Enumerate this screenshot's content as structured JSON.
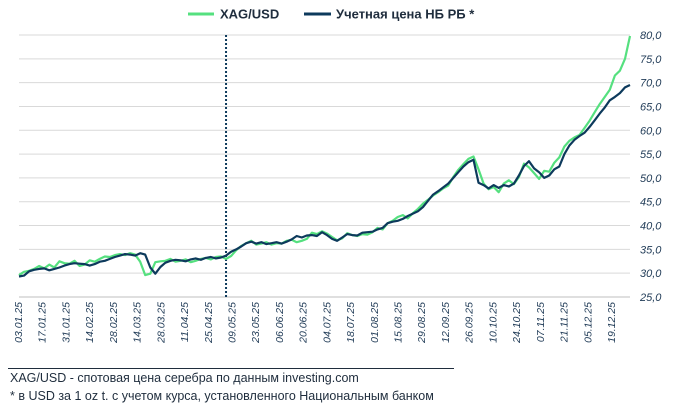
{
  "chart_data": {
    "type": "line",
    "title": "",
    "xlabel": "",
    "ylabel": "",
    "ylim": [
      25,
      80
    ],
    "yticks": [
      "25,0",
      "30,0",
      "35,0",
      "40,0",
      "45,0",
      "50,0",
      "55,0",
      "60,0",
      "65,0",
      "70,0",
      "75,0",
      "80,0"
    ],
    "grid": true,
    "legend_position": "top-center",
    "colors": {
      "xag": "#55e07f",
      "nb": "#0d3a5c",
      "grid": "#d9d9d9",
      "marker": "#0d3a5c"
    },
    "vline": {
      "x": 41,
      "style": "dotted",
      "label": ""
    },
    "x_tick_labels": [
      "03.01.25",
      "17.01.25",
      "31.01.25",
      "14.02.25",
      "28.02.25",
      "14.03.25",
      "28.03.25",
      "11.04.25",
      "25.04.25",
      "09.05.25",
      "23.05.25",
      "06.06.25",
      "20.06.25",
      "04.07.25",
      "18.07.25",
      "01.08.25",
      "15.08.25",
      "29.08.25",
      "12.09.25",
      "26.09.25",
      "10.10.25",
      "24.10.25",
      "07.11.25",
      "21.11.25",
      "05.12.25",
      "19.12.25"
    ],
    "series": [
      {
        "name": "XAG/USD",
        "values": [
          29.6,
          30.3,
          30.5,
          30.9,
          31.5,
          31.0,
          31.8,
          31.2,
          32.5,
          32.1,
          32.0,
          32.6,
          31.5,
          31.8,
          32.7,
          32.4,
          33.0,
          33.5,
          33.4,
          33.8,
          34.0,
          33.8,
          34.2,
          33.9,
          32.4,
          29.6,
          29.9,
          32.3,
          32.5,
          32.6,
          33.0,
          32.4,
          32.6,
          32.9,
          32.3,
          32.6,
          33.0,
          33.2,
          32.9,
          33.4,
          33.5,
          33.0,
          33.6,
          34.8,
          35.7,
          36.3,
          36.8,
          36.0,
          36.2,
          36.5,
          36.0,
          36.3,
          36.2,
          36.8,
          37.0,
          36.5,
          36.8,
          37.2,
          38.5,
          38.2,
          38.8,
          38.3,
          37.6,
          36.9,
          37.3,
          38.4,
          38.0,
          37.8,
          38.2,
          38.1,
          38.6,
          39.5,
          39.2,
          40.5,
          41.0,
          41.8,
          42.2,
          41.5,
          42.6,
          43.5,
          44.6,
          45.4,
          46.3,
          47.0,
          47.8,
          48.4,
          50.2,
          51.7,
          52.9,
          54.0,
          54.5,
          51.8,
          48.8,
          47.6,
          48.1,
          47.0,
          48.8,
          49.5,
          48.7,
          50.2,
          53.0,
          52.2,
          51.0,
          49.8,
          51.5,
          51.3,
          53.2,
          54.3,
          56.6,
          57.8,
          58.5,
          59.0,
          60.5,
          62.0,
          63.8,
          65.5,
          67.0,
          68.5,
          71.5,
          72.5,
          75.0,
          79.8
        ]
      },
      {
        "name": "Учетная цена НБ РБ *",
        "values": [
          29.3,
          29.5,
          30.4,
          30.7,
          30.9,
          31.0,
          30.6,
          30.9,
          31.2,
          31.6,
          31.9,
          32.1,
          32.0,
          31.9,
          31.6,
          31.9,
          32.4,
          32.6,
          33.0,
          33.4,
          33.7,
          34.0,
          33.9,
          33.7,
          34.2,
          33.9,
          31.2,
          29.9,
          31.3,
          32.2,
          32.6,
          32.8,
          32.7,
          32.5,
          32.9,
          33.1,
          32.8,
          33.2,
          33.4,
          33.1,
          33.3,
          33.7,
          34.5,
          35.0,
          35.6,
          36.3,
          36.6,
          36.2,
          36.5,
          36.1,
          36.3,
          36.5,
          36.2,
          36.6,
          37.1,
          37.8,
          37.5,
          37.9,
          38.0,
          37.8,
          38.6,
          38.0,
          37.2,
          36.8,
          37.5,
          38.2,
          38.0,
          37.9,
          38.5,
          38.6,
          38.7,
          39.2,
          39.5,
          40.5,
          40.8,
          41.0,
          41.4,
          42.0,
          42.5,
          43.0,
          43.9,
          45.2,
          46.5,
          47.2,
          48.0,
          48.8,
          50.0,
          51.2,
          52.4,
          53.3,
          53.8,
          49.0,
          48.5,
          47.8,
          48.5,
          47.9,
          48.5,
          48.2,
          48.8,
          50.5,
          52.5,
          53.5,
          52.0,
          51.2,
          50.0,
          50.5,
          51.8,
          52.4,
          55.0,
          56.8,
          58.0,
          58.8,
          59.5,
          60.7,
          62.1,
          63.5,
          64.8,
          66.3,
          67.0,
          67.8,
          69.0,
          69.5
        ]
      }
    ]
  },
  "legend": {
    "xag_label": "XAG/USD",
    "nb_label": "Учетная цена НБ РБ *"
  },
  "footnotes": {
    "line1": "XAG/USD - спотовая цена серебра по данным investing.com",
    "line2": "* в USD  за 1 oz t. с учетом курса, установленного Национальным банком"
  }
}
